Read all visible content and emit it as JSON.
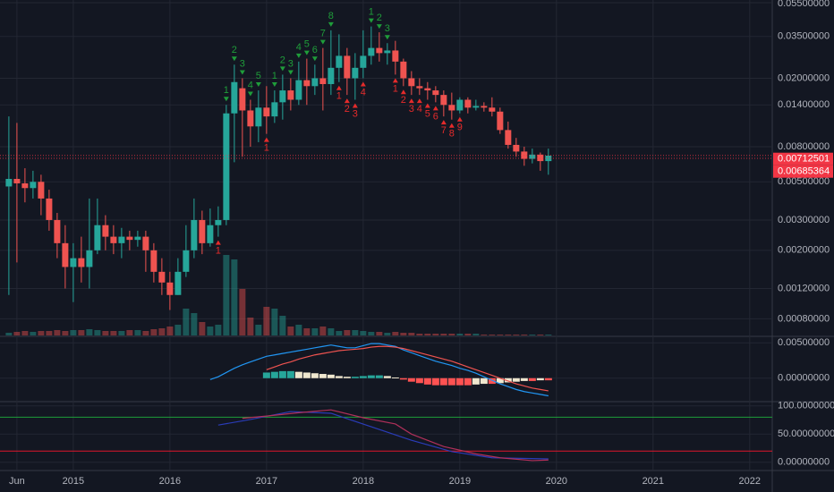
{
  "chart_data": [
    {
      "type": "candlestick",
      "log": true,
      "ylim": [
        0.00064,
        0.057
      ],
      "xlim": [
        -1.1,
        94.8
      ],
      "colors": {
        "up": "#26a69a",
        "down": "#ef5350",
        "td_up": "#1f9d3a",
        "td_down": "#e52b2b",
        "label_fill": "#f23645"
      },
      "yticks": [
        {
          "value": 0.055,
          "label": "0.05500000"
        },
        {
          "value": 0.035,
          "label": "0.03500000"
        },
        {
          "value": 0.02,
          "label": "0.02000000"
        },
        {
          "value": 0.014,
          "label": "0.01400000"
        },
        {
          "value": 0.008,
          "label": "0.00800000"
        },
        {
          "value": 0.005,
          "label": "0.00500000"
        },
        {
          "value": 0.003,
          "label": "0.00300000"
        },
        {
          "value": 0.002,
          "label": "0.00200000"
        },
        {
          "value": 0.0012,
          "label": "0.00120000"
        },
        {
          "value": 0.0008,
          "label": "0.00080000"
        }
      ],
      "xticks": [
        {
          "value": 1,
          "label": "Jun"
        },
        {
          "value": 8,
          "label": "2015"
        },
        {
          "value": 20,
          "label": "2016"
        },
        {
          "value": 32,
          "label": "2017"
        },
        {
          "value": 44,
          "label": "2018"
        },
        {
          "value": 56,
          "label": "2019"
        },
        {
          "value": 68,
          "label": "2020"
        },
        {
          "value": 80,
          "label": "2021"
        },
        {
          "value": 92,
          "label": "2022"
        }
      ],
      "open": [
        0.0047,
        0.0052,
        0.0049,
        0.0046,
        0.005,
        0.004,
        0.003,
        0.0022,
        0.0016,
        0.0018,
        0.0016,
        0.002,
        0.0028,
        0.0024,
        0.0022,
        0.0024,
        0.0023,
        0.0024,
        0.002,
        0.0015,
        0.0013,
        0.0011,
        0.0015,
        0.002,
        0.003,
        0.0022,
        0.0028,
        0.003,
        0.0125,
        0.0175,
        0.013,
        0.0105,
        0.0135,
        0.012,
        0.0145,
        0.017,
        0.015,
        0.0195,
        0.018,
        0.02,
        0.0185,
        0.023,
        0.027,
        0.02,
        0.023,
        0.027,
        0.03,
        0.028,
        0.029,
        0.025,
        0.02,
        0.018,
        0.0175,
        0.017,
        0.016,
        0.014,
        0.013,
        0.015,
        0.0135,
        0.0138,
        0.0135,
        0.0128,
        0.01,
        0.0082,
        0.0075,
        0.0068,
        0.0072,
        0.0066
      ],
      "high": [
        0.012,
        0.011,
        0.006,
        0.0058,
        0.0055,
        0.0045,
        0.0033,
        0.0028,
        0.0022,
        0.0024,
        0.004,
        0.004,
        0.0032,
        0.0028,
        0.0027,
        0.0026,
        0.0026,
        0.0026,
        0.0022,
        0.0018,
        0.0015,
        0.0018,
        0.0028,
        0.004,
        0.0034,
        0.0035,
        0.0036,
        0.014,
        0.024,
        0.02,
        0.015,
        0.017,
        0.018,
        0.017,
        0.021,
        0.02,
        0.025,
        0.026,
        0.024,
        0.03,
        0.038,
        0.036,
        0.03,
        0.028,
        0.038,
        0.04,
        0.037,
        0.032,
        0.033,
        0.026,
        0.022,
        0.02,
        0.019,
        0.018,
        0.017,
        0.0165,
        0.0155,
        0.0155,
        0.015,
        0.0145,
        0.0155,
        0.0135,
        0.0112,
        0.009,
        0.008,
        0.0078,
        0.0074,
        0.0078
      ],
      "low": [
        0.0011,
        0.0017,
        0.0038,
        0.004,
        0.0032,
        0.0026,
        0.0018,
        0.0012,
        0.001,
        0.0013,
        0.0012,
        0.0019,
        0.002,
        0.0019,
        0.0018,
        0.002,
        0.0021,
        0.0015,
        0.0013,
        0.0011,
        0.0009,
        0.0011,
        0.0014,
        0.0018,
        0.0019,
        0.0021,
        0.0024,
        0.0028,
        0.0065,
        0.007,
        0.008,
        0.0085,
        0.0095,
        0.011,
        0.0115,
        0.013,
        0.014,
        0.014,
        0.016,
        0.013,
        0.016,
        0.019,
        0.016,
        0.015,
        0.02,
        0.024,
        0.025,
        0.024,
        0.021,
        0.018,
        0.016,
        0.016,
        0.015,
        0.0145,
        0.012,
        0.0115,
        0.0125,
        0.0125,
        0.013,
        0.0128,
        0.012,
        0.0095,
        0.0078,
        0.007,
        0.0062,
        0.0064,
        0.0058,
        0.0055
      ],
      "close": [
        0.0052,
        0.0049,
        0.0046,
        0.005,
        0.004,
        0.003,
        0.0022,
        0.0016,
        0.0018,
        0.0016,
        0.002,
        0.0028,
        0.0024,
        0.0022,
        0.0024,
        0.0023,
        0.0024,
        0.002,
        0.0015,
        0.0013,
        0.0011,
        0.0015,
        0.002,
        0.003,
        0.0022,
        0.0028,
        0.003,
        0.0125,
        0.019,
        0.013,
        0.0105,
        0.0135,
        0.012,
        0.0145,
        0.017,
        0.015,
        0.0195,
        0.018,
        0.02,
        0.0185,
        0.023,
        0.027,
        0.02,
        0.023,
        0.027,
        0.03,
        0.028,
        0.029,
        0.025,
        0.02,
        0.018,
        0.0175,
        0.017,
        0.016,
        0.014,
        0.013,
        0.015,
        0.0135,
        0.0138,
        0.0135,
        0.0128,
        0.01,
        0.0082,
        0.0075,
        0.0068,
        0.0072,
        0.0066,
        0.0071
      ],
      "volume": [
        3,
        4,
        5,
        4,
        5,
        5,
        6,
        5,
        6,
        6,
        7,
        6,
        5,
        5,
        5,
        6,
        6,
        5,
        7,
        8,
        10,
        12,
        30,
        25,
        15,
        10,
        12,
        90,
        85,
        52,
        20,
        12,
        32,
        30,
        22,
        10,
        12,
        8,
        8,
        10,
        8,
        5,
        6,
        6,
        5,
        4,
        4,
        3,
        4,
        3,
        3,
        2,
        2,
        2,
        2,
        2,
        2,
        2,
        2,
        1,
        1,
        1,
        1,
        1,
        1,
        1,
        1,
        1
      ],
      "td_up": [
        null,
        null,
        null,
        null,
        null,
        null,
        null,
        null,
        null,
        null,
        null,
        null,
        null,
        null,
        null,
        null,
        null,
        null,
        null,
        null,
        null,
        null,
        null,
        null,
        null,
        null,
        null,
        "1",
        "2",
        "3",
        "4",
        "5",
        null,
        "1",
        "2",
        "3",
        "4",
        "5",
        "6",
        "7",
        "8",
        null,
        null,
        null,
        null,
        "1",
        "2",
        "3",
        null,
        null,
        null,
        null,
        null,
        null,
        null,
        null,
        null,
        null,
        null,
        null,
        null,
        null,
        null,
        null,
        null,
        null,
        null,
        null
      ],
      "td_down": [
        null,
        null,
        null,
        null,
        null,
        null,
        null,
        null,
        null,
        null,
        null,
        null,
        null,
        null,
        null,
        null,
        null,
        null,
        null,
        null,
        null,
        null,
        null,
        null,
        null,
        null,
        "1",
        null,
        null,
        null,
        null,
        null,
        "1",
        null,
        null,
        null,
        null,
        null,
        null,
        null,
        null,
        "1",
        "2",
        "3",
        "4",
        null,
        null,
        null,
        "1",
        "2",
        "3",
        "4",
        "5",
        "6",
        "7",
        "8",
        "9",
        null,
        null,
        null,
        null,
        null,
        null,
        null,
        null,
        null,
        null,
        null
      ],
      "price_labels": [
        {
          "value": 0.00712501,
          "label": "0.00712501"
        },
        {
          "value": 0.00685364,
          "label": "0.00685364"
        }
      ]
    },
    {
      "type": "macd",
      "ylim": [
        -0.0032,
        0.0058
      ],
      "yticks": [
        {
          "value": 0.005,
          "label": "0.00500000"
        },
        {
          "value": 0,
          "label": "0.00000000"
        }
      ],
      "hist_colors": {
        "grow_above": "#26a69a",
        "fall_above": "#efe7cf",
        "fall_below": "#ff5252",
        "grow_below": "#efe7cf"
      },
      "series": [
        {
          "color": "#2196f3",
          "values": [
            null,
            null,
            null,
            null,
            null,
            null,
            null,
            null,
            null,
            null,
            null,
            null,
            null,
            null,
            null,
            null,
            null,
            null,
            null,
            null,
            null,
            null,
            null,
            null,
            null,
            -0.0002,
            0.0002,
            0.0008,
            0.0014,
            0.0019,
            0.0023,
            0.0027,
            0.0031,
            0.0033,
            0.0035,
            0.0037,
            0.0039,
            0.0041,
            0.0043,
            0.0045,
            0.0047,
            0.0045,
            0.0043,
            0.0043,
            0.0046,
            0.0049,
            0.0049,
            0.0047,
            0.0045,
            0.004,
            0.0036,
            0.0032,
            0.0028,
            0.0024,
            0.0021,
            0.0018,
            0.0014,
            0.0011,
            0.0007,
            0.0002,
            -0.0003,
            -0.0008,
            -0.0012,
            -0.0016,
            -0.0019,
            -0.0021,
            -0.0023,
            -0.0025
          ]
        },
        {
          "color": "#ef5350",
          "values": [
            null,
            null,
            null,
            null,
            null,
            null,
            null,
            null,
            null,
            null,
            null,
            null,
            null,
            null,
            null,
            null,
            null,
            null,
            null,
            null,
            null,
            null,
            null,
            null,
            null,
            null,
            null,
            null,
            null,
            null,
            null,
            null,
            0.0012,
            0.0016,
            0.002,
            0.0023,
            0.0027,
            0.003,
            0.0033,
            0.0035,
            0.0037,
            0.0039,
            0.004,
            0.0041,
            0.0042,
            0.0044,
            0.0045,
            0.0045,
            0.0044,
            0.0042,
            0.0039,
            0.0036,
            0.0033,
            0.003,
            0.0027,
            0.0024,
            0.002,
            0.0016,
            0.0012,
            0.0008,
            0.0004,
            0,
            -0.0004,
            -0.0008,
            -0.0011,
            -0.0014,
            -0.0016,
            -0.0018
          ]
        }
      ],
      "histogram": [
        null,
        null,
        null,
        null,
        null,
        null,
        null,
        null,
        null,
        null,
        null,
        null,
        null,
        null,
        null,
        null,
        null,
        null,
        null,
        null,
        null,
        null,
        null,
        null,
        null,
        null,
        null,
        null,
        null,
        null,
        null,
        null,
        0.0008,
        0.0009,
        0.001,
        0.001,
        0.0009,
        0.0008,
        0.0007,
        0.0006,
        0.0005,
        0.0003,
        0.0002,
        0.0002,
        0.0003,
        0.0004,
        0.0004,
        0.0003,
        0.0001,
        -0.0002,
        -0.0005,
        -0.0007,
        -0.0009,
        -0.001,
        -0.001,
        -0.001,
        -0.001,
        -0.001,
        -0.0009,
        -0.0008,
        -0.0008,
        -0.0007,
        -0.0006,
        -0.0005,
        -0.0004,
        -0.0004,
        -0.0003,
        -0.0003
      ]
    },
    {
      "type": "line",
      "ylim": [
        -13,
        106
      ],
      "yticks": [
        {
          "value": 100,
          "label": "100.00000000"
        },
        {
          "value": 50,
          "label": "50.00000000"
        },
        {
          "value": 0,
          "label": "0.00000000"
        }
      ],
      "levels": [
        {
          "value": 80,
          "color": "#1e9e3a"
        },
        {
          "value": 20,
          "color": "#e0162b"
        }
      ],
      "series": [
        {
          "color": "#2a3cb8",
          "x": [
            26,
            30,
            35,
            40,
            45,
            50,
            55,
            60,
            67
          ],
          "values": [
            66,
            76,
            90,
            87,
            63,
            39,
            19,
            8,
            6
          ]
        },
        {
          "color": "#b0305a",
          "x": [
            29,
            32,
            36,
            40,
            44,
            48,
            50,
            54,
            58,
            61,
            65,
            67
          ],
          "values": [
            78,
            82,
            88,
            93,
            79,
            68,
            50,
            28,
            15,
            8,
            3,
            4
          ]
        }
      ]
    }
  ]
}
